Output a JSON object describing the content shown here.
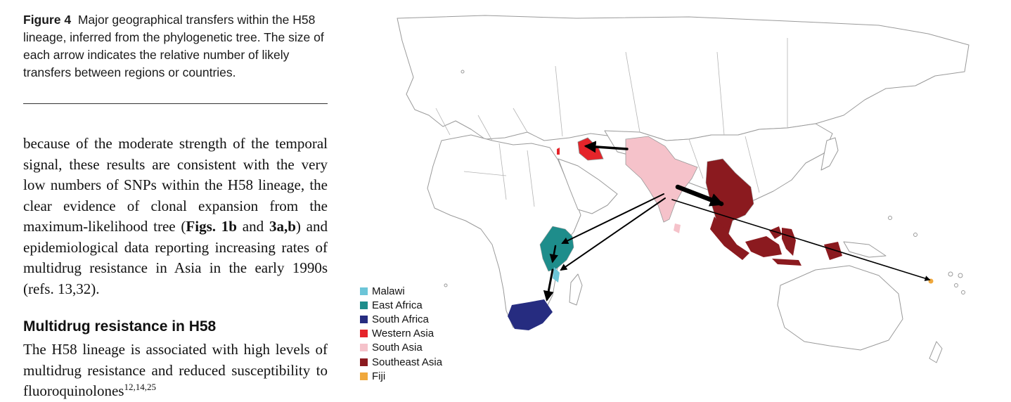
{
  "caption": {
    "label": "Figure 4",
    "text": "Major geographical transfers within the H58 lineage, inferred from the phylogenetic tree. The size of each arrow indicates the relative number of likely transfers between regions or countries."
  },
  "paragraph1": {
    "part1": "because of the moderate strength of the temporal signal, these results are consistent with the very low numbers of SNPs within the H58 lineage, the clear evidence of clonal expansion from the maximum-likelihood tree (",
    "ref1": "Figs. 1b",
    "part2": " and ",
    "ref2": "3a,b",
    "part3": ") and epidemiological data reporting increasing rates of multidrug resistance in Asia in the early 1990s (refs. 13,32)."
  },
  "section": {
    "heading": "Multidrug resistance in H58",
    "text": "The H58 lineage is associated with high levels of multidrug resistance and reduced susceptibility to fluoroquinolones",
    "refs": "12,14,25"
  },
  "legend": [
    {
      "label": "Malawi",
      "color": "#6cc5d8"
    },
    {
      "label": "East Africa",
      "color": "#1e8d8b"
    },
    {
      "label": "South Africa",
      "color": "#262c80"
    },
    {
      "label": "Western Asia",
      "color": "#e5242a"
    },
    {
      "label": "South Asia",
      "color": "#f5c2ca"
    },
    {
      "label": "Southeast Asia",
      "color": "#8b1a1f"
    },
    {
      "label": "Fiji",
      "color": "#f0a83c"
    }
  ]
}
